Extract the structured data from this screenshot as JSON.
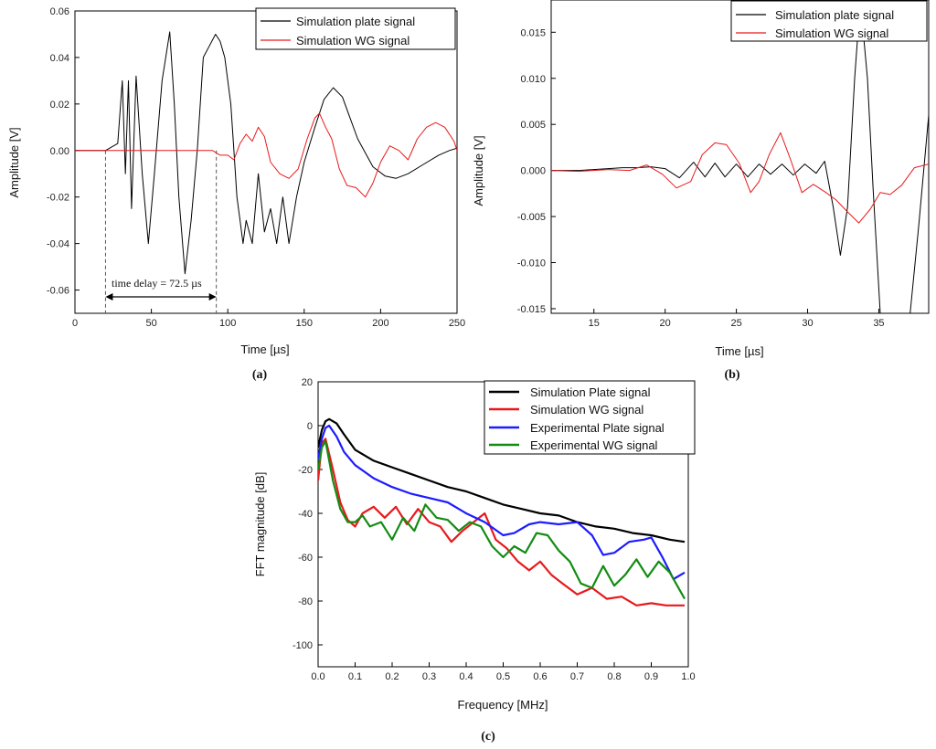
{
  "chart_data": [
    {
      "id": "a",
      "panel_label": "(a)",
      "type": "line",
      "xlabel": "Time [µs]",
      "ylabel": "Amplitude [V]",
      "xlim": [
        0,
        250
      ],
      "ylim": [
        -0.07,
        0.06
      ],
      "xticks": [
        0,
        50,
        100,
        150,
        200,
        250
      ],
      "yticks": [
        -0.06,
        -0.04,
        -0.02,
        0.0,
        0.02,
        0.04,
        0.06
      ],
      "ytick_labels": [
        "-0.06",
        "-0.04",
        "-0.02",
        "0.00",
        "0.02",
        "0.04",
        "0.06"
      ],
      "legend": [
        "Simulation plate signal",
        "Simulation WG signal"
      ],
      "annotation": "time delay = 72.5 µs",
      "delay_markers": [
        20,
        92.5
      ],
      "series": [
        {
          "name": "Simulation plate signal",
          "color": "#000000",
          "x": [
            0,
            20,
            28,
            31,
            33,
            35,
            37,
            40,
            44,
            48,
            52,
            57,
            62,
            65,
            68,
            72,
            76,
            80,
            84,
            88,
            92,
            95,
            98,
            102,
            104,
            106,
            108,
            110,
            112,
            116,
            120,
            124,
            128,
            132,
            136,
            140,
            145,
            150,
            157,
            163,
            169,
            175,
            185,
            195,
            203,
            210,
            218,
            228,
            238,
            245,
            250
          ],
          "values": [
            0,
            0,
            0.003,
            0.03,
            -0.01,
            0.03,
            -0.025,
            0.032,
            -0.01,
            -0.04,
            -0.01,
            0.03,
            0.051,
            0.02,
            -0.02,
            -0.053,
            -0.03,
            0.0,
            0.04,
            0.045,
            0.05,
            0.047,
            0.04,
            0.02,
            0.0,
            -0.02,
            -0.03,
            -0.04,
            -0.03,
            -0.04,
            -0.01,
            -0.035,
            -0.025,
            -0.04,
            -0.02,
            -0.04,
            -0.02,
            -0.005,
            0.01,
            0.022,
            0.027,
            0.023,
            0.005,
            -0.007,
            -0.011,
            -0.012,
            -0.01,
            -0.006,
            -0.002,
            0.0,
            0.001
          ]
        },
        {
          "name": "Simulation WG signal",
          "color": "#e8191b",
          "x": [
            0,
            90,
            95,
            100,
            104,
            108,
            112,
            116,
            120,
            124,
            128,
            134,
            140,
            146,
            152,
            157,
            160,
            164,
            168,
            173,
            178,
            184,
            190,
            195,
            200,
            206,
            212,
            218,
            224,
            230,
            236,
            242,
            248,
            250
          ],
          "values": [
            0,
            0,
            -0.002,
            -0.002,
            -0.004,
            0.003,
            0.007,
            0.004,
            0.01,
            0.006,
            -0.005,
            -0.01,
            -0.012,
            -0.008,
            0.005,
            0.014,
            0.016,
            0.01,
            0.005,
            -0.008,
            -0.015,
            -0.016,
            -0.02,
            -0.014,
            -0.005,
            0.002,
            0.0,
            -0.004,
            0.005,
            0.01,
            0.012,
            0.01,
            0.004,
            0.0
          ]
        }
      ]
    },
    {
      "id": "b",
      "panel_label": "(b)",
      "type": "line",
      "xlabel": "Time [µs]",
      "ylabel": "Amplitude [V]",
      "xlim": [
        12,
        38.5
      ],
      "ylim": [
        -0.0155,
        0.0185
      ],
      "xticks": [
        15,
        20,
        25,
        30,
        35
      ],
      "yticks": [
        -0.015,
        -0.01,
        -0.005,
        0.0,
        0.005,
        0.01,
        0.015
      ],
      "ytick_labels": [
        "-0.015",
        "-0.010",
        "-0.005",
        "0.000",
        "0.005",
        "0.010",
        "0.015"
      ],
      "legend": [
        "Simulation plate signal",
        "Simulation WG signal"
      ],
      "series": [
        {
          "name": "Simulation plate signal",
          "color": "#000000",
          "x": [
            12,
            14,
            16,
            17,
            18,
            19,
            20,
            21,
            22,
            22.8,
            23.5,
            24.2,
            25,
            25.8,
            26.6,
            27.4,
            28.2,
            29,
            29.8,
            30.6,
            31.2,
            31.8,
            32.3,
            32.8,
            33.3,
            33.7,
            34.2,
            34.6,
            35.1,
            35.6,
            36.0,
            36.6,
            37.2,
            37.8,
            38.5
          ],
          "values": [
            0.0,
            0.0,
            0.0002,
            0.0003,
            0.0003,
            0.0004,
            0.0002,
            -0.0008,
            0.0009,
            -0.0007,
            0.0008,
            -0.0007,
            0.0007,
            -0.0007,
            0.0007,
            -0.0004,
            0.0007,
            -0.0005,
            0.0007,
            -0.0003,
            0.001,
            -0.004,
            -0.0092,
            -0.004,
            0.01,
            0.0185,
            0.01,
            -0.002,
            -0.0155,
            -0.0155,
            -0.0155,
            -0.0155,
            -0.0155,
            -0.006,
            0.006
          ]
        },
        {
          "name": "Simulation WG signal",
          "color": "#e8191b",
          "x": [
            12,
            14,
            16,
            17.5,
            18.7,
            19.8,
            20.8,
            21.8,
            22.6,
            23.5,
            24.3,
            25.2,
            26.0,
            26.6,
            27.3,
            28.1,
            28.8,
            29.6,
            30.4,
            31.2,
            32.0,
            32.8,
            33.6,
            34.4,
            35.1,
            35.8,
            36.6,
            37.5,
            38.5
          ],
          "values": [
            0.0,
            -0.0001,
            0.0001,
            0.0,
            0.0006,
            -0.0004,
            -0.0019,
            -0.0012,
            0.0017,
            0.003,
            0.0028,
            0.0008,
            -0.0024,
            -0.0012,
            0.0017,
            0.0041,
            0.0012,
            -0.0024,
            -0.0015,
            -0.0023,
            -0.0032,
            -0.0045,
            -0.0057,
            -0.0042,
            -0.0024,
            -0.0026,
            -0.0016,
            0.0003,
            0.0007
          ]
        }
      ]
    },
    {
      "id": "c",
      "panel_label": "(c)",
      "type": "line",
      "xlabel": "Frequency [MHz]",
      "ylabel": "FFT magnitude [dB]",
      "xlim": [
        0,
        1
      ],
      "ylim": [
        -110,
        20
      ],
      "xticks": [
        0,
        0.1,
        0.2,
        0.3,
        0.4,
        0.5,
        0.6,
        0.7,
        0.8,
        0.9,
        1.0
      ],
      "xtick_labels": [
        "0.0",
        "0.1",
        "0.2",
        "0.3",
        "0.4",
        "0.5",
        "0.6",
        "0.7",
        "0.8",
        "0.9",
        "1.0"
      ],
      "yticks": [
        -100,
        -80,
        -60,
        -40,
        -20,
        0,
        20
      ],
      "legend": [
        "Simulation Plate signal",
        "Simulation WG signal",
        "Experimental Plate signal",
        "Experimental WG signal"
      ],
      "series": [
        {
          "name": "Simulation Plate signal",
          "color": "#000000",
          "x": [
            0,
            0.01,
            0.02,
            0.03,
            0.05,
            0.07,
            0.1,
            0.15,
            0.2,
            0.25,
            0.3,
            0.35,
            0.4,
            0.45,
            0.5,
            0.55,
            0.6,
            0.65,
            0.7,
            0.75,
            0.8,
            0.85,
            0.9,
            0.95,
            0.99
          ],
          "values": [
            -10,
            -2,
            2,
            3,
            1,
            -4,
            -11,
            -16,
            -19,
            -22,
            -25,
            -28,
            -30,
            -33,
            -36,
            -38,
            -40,
            -41,
            -44,
            -46,
            -47,
            -49,
            -50,
            -52,
            -53
          ]
        },
        {
          "name": "Simulation WG signal",
          "color": "#e8191b",
          "x": [
            0,
            0.01,
            0.02,
            0.04,
            0.06,
            0.08,
            0.1,
            0.12,
            0.15,
            0.18,
            0.21,
            0.24,
            0.27,
            0.3,
            0.33,
            0.36,
            0.39,
            0.42,
            0.45,
            0.48,
            0.51,
            0.54,
            0.57,
            0.6,
            0.63,
            0.66,
            0.7,
            0.74,
            0.78,
            0.82,
            0.86,
            0.9,
            0.94,
            0.99
          ],
          "values": [
            -25,
            -8,
            -6,
            -20,
            -35,
            -43,
            -46,
            -40,
            -37,
            -42,
            -37,
            -45,
            -38,
            -44,
            -46,
            -53,
            -48,
            -44,
            -40,
            -52,
            -56,
            -62,
            -66,
            -62,
            -68,
            -72,
            -77,
            -74,
            -79,
            -78,
            -82,
            -81,
            -82,
            -82
          ]
        },
        {
          "name": "Experimental Plate signal",
          "color": "#1c1cff",
          "x": [
            0,
            0.01,
            0.02,
            0.03,
            0.05,
            0.07,
            0.1,
            0.15,
            0.2,
            0.25,
            0.3,
            0.35,
            0.4,
            0.45,
            0.5,
            0.53,
            0.57,
            0.6,
            0.65,
            0.7,
            0.74,
            0.77,
            0.8,
            0.84,
            0.88,
            0.9,
            0.93,
            0.96,
            0.99
          ],
          "values": [
            -15,
            -6,
            -1,
            0,
            -5,
            -12,
            -18,
            -24,
            -28,
            -31,
            -33,
            -35,
            -40,
            -44,
            -50,
            -49,
            -45,
            -44,
            -45,
            -44,
            -50,
            -59,
            -58,
            -53,
            -52,
            -51,
            -60,
            -70,
            -67
          ]
        },
        {
          "name": "Experimental WG signal",
          "color": "#138c13",
          "x": [
            0,
            0.01,
            0.02,
            0.04,
            0.06,
            0.08,
            0.1,
            0.12,
            0.14,
            0.17,
            0.2,
            0.23,
            0.26,
            0.29,
            0.32,
            0.35,
            0.38,
            0.41,
            0.44,
            0.47,
            0.5,
            0.53,
            0.56,
            0.59,
            0.62,
            0.65,
            0.68,
            0.71,
            0.74,
            0.77,
            0.8,
            0.83,
            0.86,
            0.89,
            0.92,
            0.95,
            0.99
          ],
          "values": [
            -20,
            -10,
            -7,
            -25,
            -38,
            -44,
            -44,
            -41,
            -46,
            -44,
            -52,
            -42,
            -48,
            -36,
            -42,
            -43,
            -48,
            -44,
            -46,
            -55,
            -60,
            -55,
            -58,
            -49,
            -50,
            -57,
            -62,
            -72,
            -74,
            -64,
            -73,
            -68,
            -61,
            -69,
            -62,
            -67,
            -79
          ]
        }
      ]
    }
  ]
}
